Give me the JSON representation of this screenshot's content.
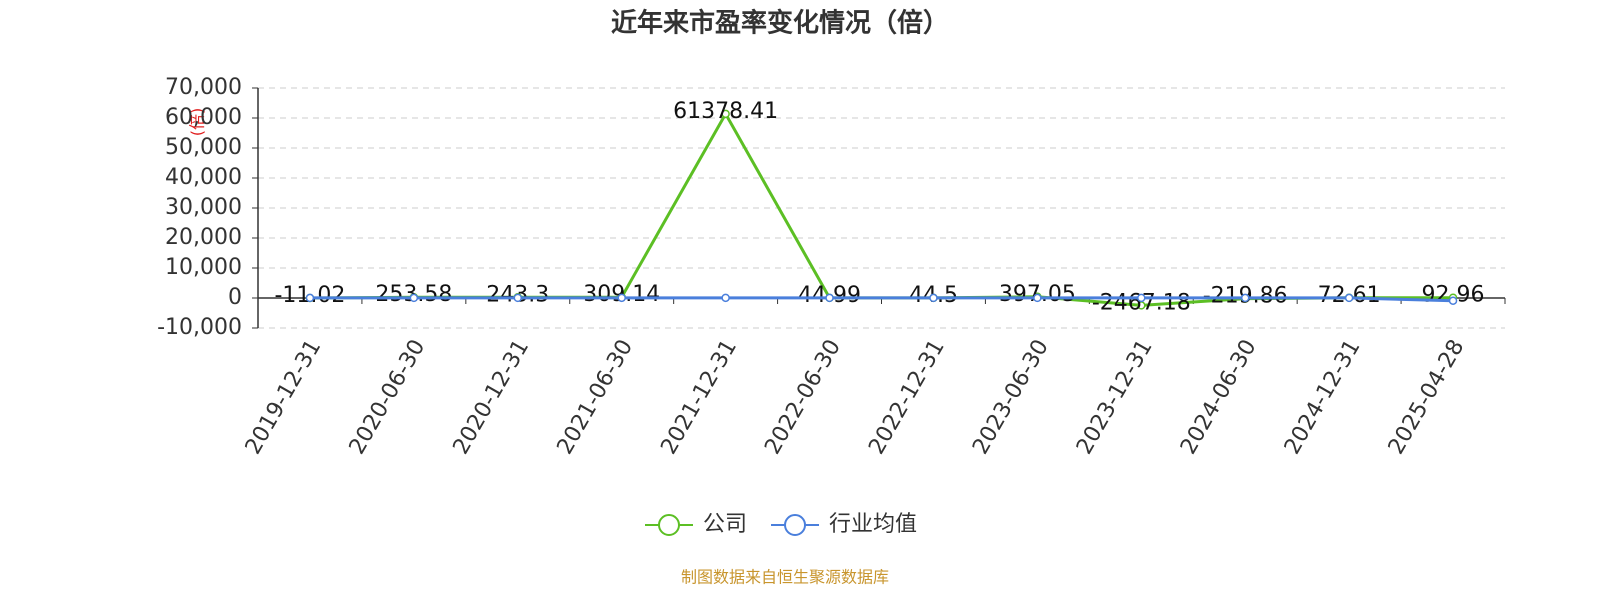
{
  "chart_data": {
    "type": "line",
    "title": "近年来市盈率变化情况（倍）",
    "y_label": "(倍)",
    "source": "制图数据来自恒生聚源数据库",
    "categories": [
      "2019-12-31",
      "2020-06-30",
      "2020-12-31",
      "2021-06-30",
      "2021-12-31",
      "2022-06-30",
      "2022-12-31",
      "2023-06-30",
      "2023-12-31",
      "2024-06-30",
      "2024-12-31",
      "2025-04-28"
    ],
    "series": [
      {
        "name": "公司",
        "color": "#5cbf24",
        "values": [
          -11.02,
          253.58,
          243.3,
          309.14,
          61378.41,
          44.99,
          44.5,
          397.05,
          -2467.18,
          -219.86,
          72.61,
          92.96
        ],
        "show_labels": true
      },
      {
        "name": "行业均值",
        "color": "#4a7fdc",
        "values": [
          35,
          38,
          42,
          45,
          48,
          40,
          33,
          28,
          26,
          24,
          23,
          -900
        ],
        "show_labels": false
      }
    ],
    "ylim": [
      -10000,
      70000
    ],
    "yticks": [
      {
        "value": -10000,
        "label": "-10,000"
      },
      0,
      {
        "value": 10000,
        "label": "10,000"
      },
      {
        "value": 20000,
        "label": "20,000"
      },
      {
        "value": 30000,
        "label": "30,000"
      },
      {
        "value": 40000,
        "label": "40,000"
      },
      {
        "value": 50000,
        "label": "50,000"
      },
      {
        "value": 60000,
        "label": "60,000"
      },
      {
        "value": 70000,
        "label": "70,000"
      }
    ],
    "grid": true
  }
}
